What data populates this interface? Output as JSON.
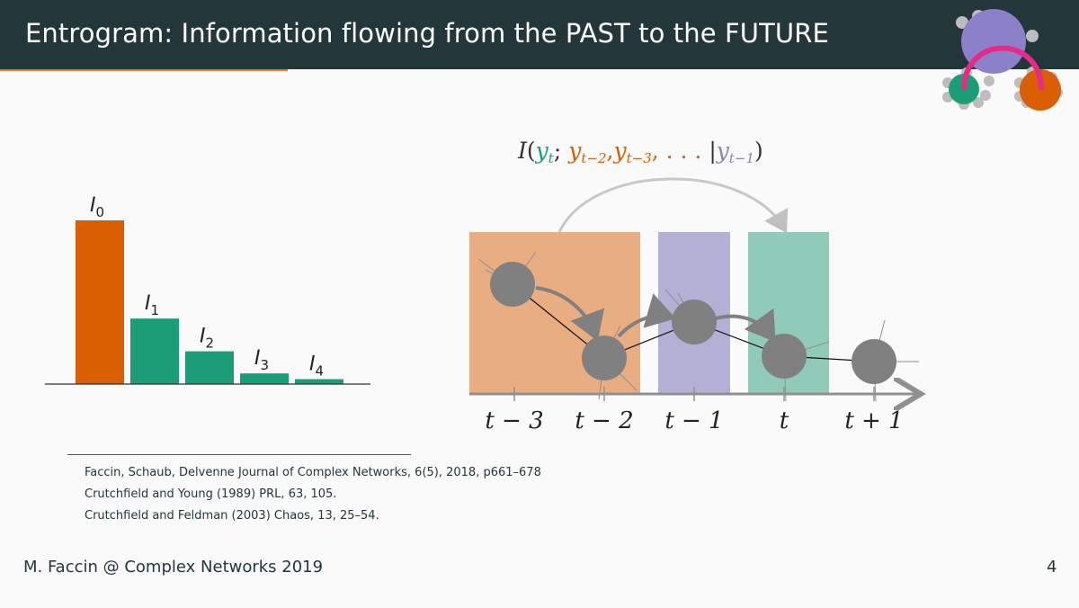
{
  "header": {
    "title": "Entrogram: Information flowing from the PAST to the FUTURE"
  },
  "logo": {
    "icon": "network-logo-icon",
    "colors": {
      "purple": "#8c81c9",
      "green": "#1b9e77",
      "orange": "#d95f02",
      "magenta": "#e7298a",
      "gray": "#bdbdbd"
    }
  },
  "bar_plot": {
    "bars": [
      {
        "label": "I",
        "sub": "0",
        "value": 1.0,
        "color": "#d95f02"
      },
      {
        "label": "I",
        "sub": "1",
        "value": 0.4,
        "color": "#1b9e77"
      },
      {
        "label": "I",
        "sub": "2",
        "value": 0.2,
        "color": "#1b9e77"
      },
      {
        "label": "I",
        "sub": "3",
        "value": 0.065,
        "color": "#1b9e77"
      },
      {
        "label": "I",
        "sub": "4",
        "value": 0.03,
        "color": "#1b9e77"
      }
    ]
  },
  "diagram": {
    "formula": {
      "I": "I",
      "open": "(",
      "y_t_base": "y",
      "y_t_sub": "t",
      "semi": ";",
      "past": "y",
      "past_sub": "t−2",
      "comma1": ",",
      "past2": "y",
      "past2_sub": "t−3",
      "dots": ", . . . ",
      "bar": "|",
      "cond": "y",
      "cond_sub": "t−1",
      "close": ")"
    },
    "ticks": [
      "t − 3",
      "t − 2",
      "t − 1",
      "t",
      "t + 1"
    ],
    "colors": {
      "past": "#e8ad80",
      "present": "#b3b0d6",
      "future": "#8fcbb8",
      "node": "#808080",
      "axis": "#909090"
    }
  },
  "references": [
    "Faccin, Schaub, Delvenne Journal of Complex Networks, 6(5), 2018, p661–678",
    "Crutchfield and Young (1989) PRL, 63, 105.",
    "Crutchfield and Feldman (2003) Chaos, 13, 25–54."
  ],
  "footer": {
    "author": "M. Faccin @ Complex Networks 2019",
    "page": "4"
  }
}
